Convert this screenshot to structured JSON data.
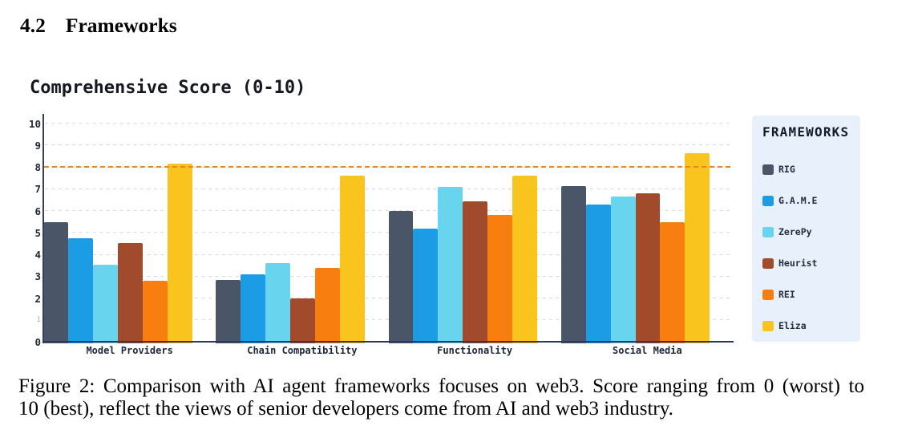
{
  "section": {
    "number": "4.2",
    "title": "Frameworks"
  },
  "figure": {
    "caption_line1": "Figure 2: Comparison with AI agent frameworks focuses on web3. Score ranging from 0 (worst) to",
    "caption_line2": "10 (best), reflect the views of senior developers come from AI and web3 industry."
  },
  "chart_data": {
    "type": "bar",
    "title": "Comprehensive Score (0-10)",
    "categories": [
      "Model Providers",
      "Chain Compatibility",
      "Functionality",
      "Social Media"
    ],
    "series": [
      {
        "name": "RIG",
        "color": "#4a5568",
        "values": [
          5.5,
          2.85,
          6.0,
          7.15
        ]
      },
      {
        "name": "G.A.M.E",
        "color": "#1c9ce5",
        "values": [
          4.75,
          3.1,
          5.2,
          6.3
        ]
      },
      {
        "name": "ZerePy",
        "color": "#68d4ed",
        "values": [
          3.55,
          3.6,
          7.1,
          6.65
        ]
      },
      {
        "name": "Heurist",
        "color": "#a24a2c",
        "values": [
          4.55,
          2.0,
          6.45,
          6.8
        ]
      },
      {
        "name": "REI",
        "color": "#f97e10",
        "values": [
          2.8,
          3.4,
          5.8,
          5.5
        ]
      },
      {
        "name": "Eliza",
        "color": "#f8c41d",
        "values": [
          8.15,
          7.6,
          7.6,
          8.65
        ]
      }
    ],
    "ylim": [
      0,
      10
    ],
    "ytick_step": 1,
    "grid": "horizontal-dashed",
    "grid_color": "#d9d9d9",
    "axis_color": "#2c3760",
    "reference_line": {
      "value": 8,
      "style": "dashed",
      "color": "#f0831f"
    },
    "legend": {
      "title": "FRAMEWORKS",
      "position": "right",
      "background": "#e8f1fb"
    }
  }
}
